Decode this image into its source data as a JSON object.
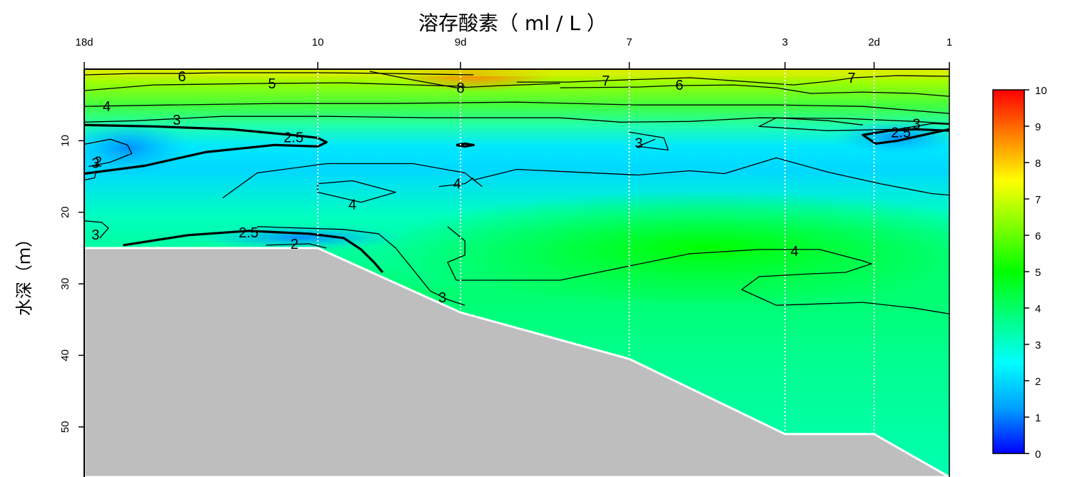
{
  "chart_data": {
    "type": "heatmap",
    "title": "溶存酸素（ ml / L ）",
    "xlabel": "",
    "ylabel": "水深（ｍ）",
    "stations": [
      {
        "label": "18d",
        "pos": 0
      },
      {
        "label": "10",
        "pos": 0.27
      },
      {
        "label": "9d",
        "pos": 0.435
      },
      {
        "label": "7",
        "pos": 0.63
      },
      {
        "label": "3",
        "pos": 0.81
      },
      {
        "label": "2d",
        "pos": 0.913
      },
      {
        "label": "1",
        "pos": 1
      }
    ],
    "y_ticks": [
      10,
      20,
      30,
      40,
      50
    ],
    "ylim": [
      57,
      0
    ],
    "y_reversed": true,
    "colorbar": {
      "min": 0,
      "max": 10,
      "ticks": [
        0,
        1,
        2,
        3,
        4,
        5,
        6,
        7,
        8,
        9,
        10
      ],
      "colors": [
        "#0000ff",
        "#00a0ff",
        "#00ffff",
        "#00ff80",
        "#00ff00",
        "#80ff00",
        "#ffff00",
        "#ff8000",
        "#ff0000"
      ]
    },
    "bottom_depth_profile": [
      {
        "pos": 0,
        "depth": 25
      },
      {
        "pos": 0.27,
        "depth": 25
      },
      {
        "pos": 0.435,
        "depth": 34
      },
      {
        "pos": 0.63,
        "depth": 40.5
      },
      {
        "pos": 0.81,
        "depth": 51
      },
      {
        "pos": 0.913,
        "depth": 51
      },
      {
        "pos": 1,
        "depth": 57
      }
    ],
    "contour_levels": [
      2,
      2.5,
      3,
      4,
      5,
      6,
      7,
      8
    ],
    "contour_labels": [
      {
        "text": "6",
        "pos": 0.113,
        "depth": 1
      },
      {
        "text": "5",
        "pos": 0.217,
        "depth": 2
      },
      {
        "text": "8",
        "pos": 0.435,
        "depth": 2.6
      },
      {
        "text": "7",
        "pos": 0.603,
        "depth": 1.6
      },
      {
        "text": "6",
        "pos": 0.688,
        "depth": 2.2
      },
      {
        "text": "7",
        "pos": 0.887,
        "depth": 1.2
      },
      {
        "text": "4",
        "pos": 0.026,
        "depth": 5.2
      },
      {
        "text": "3",
        "pos": 0.107,
        "depth": 7.1
      },
      {
        "text": "2.5",
        "pos": 0.242,
        "depth": 9.5
      },
      {
        "text": "3",
        "pos": 0.962,
        "depth": 7.6
      },
      {
        "text": "2.5",
        "pos": 0.944,
        "depth": 8.8
      },
      {
        "text": "3",
        "pos": 0.641,
        "depth": 10.3
      },
      {
        "text": "2",
        "pos": 0.016,
        "depth": 12.9
      },
      {
        "text": "4",
        "pos": 0.431,
        "depth": 16
      },
      {
        "text": "4",
        "pos": 0.31,
        "depth": 18.9
      },
      {
        "text": "3",
        "pos": 0.013,
        "depth": 13.1
      },
      {
        "text": "3",
        "pos": 0.013,
        "depth": 23.1
      },
      {
        "text": "2.5",
        "pos": 0.19,
        "depth": 22.8
      },
      {
        "text": "2",
        "pos": 0.243,
        "depth": 24.4
      },
      {
        "text": "4",
        "pos": 0.821,
        "depth": 25.4
      },
      {
        "text": "3",
        "pos": 0.414,
        "depth": 31.9
      }
    ]
  }
}
